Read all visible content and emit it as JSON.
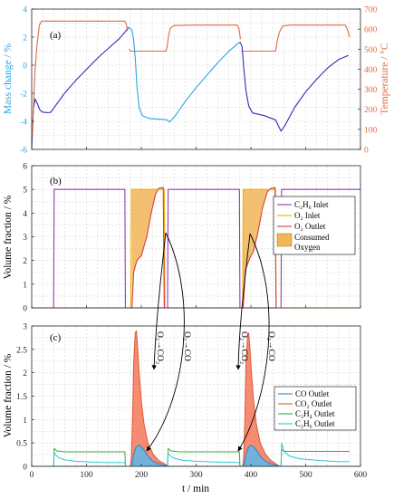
{
  "chart_data": [
    {
      "panel": "(a)",
      "type": "line",
      "xlim": [
        0,
        600
      ],
      "ylabel": "Mass change / %",
      "ylim": [
        -6,
        4
      ],
      "yticks": [
        -6,
        -4,
        -2,
        0,
        2,
        4
      ],
      "ylabel_right": "Temperature / °C",
      "ylim_right": [
        0,
        700
      ],
      "yticks_right": [
        0,
        100,
        200,
        300,
        400,
        500,
        600,
        700
      ],
      "grid": true,
      "series": [
        {
          "axis": "left",
          "color": "#2d2db8",
          "points": [
            [
              0,
              -5.9
            ],
            [
              3,
              -3.2
            ],
            [
              6,
              -2.4
            ],
            [
              10,
              -2.7
            ],
            [
              15,
              -3.2
            ],
            [
              20,
              -3.35
            ],
            [
              30,
              -3.38
            ],
            [
              35,
              -3.35
            ],
            [
              45,
              -2.8
            ],
            [
              60,
              -2.0
            ],
            [
              80,
              -1.1
            ],
            [
              100,
              -0.3
            ],
            [
              120,
              0.5
            ],
            [
              140,
              1.2
            ],
            [
              160,
              1.9
            ],
            [
              170,
              2.35
            ],
            [
              177,
              2.7
            ]
          ]
        },
        {
          "axis": "left",
          "color": "#2aa4e0",
          "points": [
            [
              177,
              2.7
            ],
            [
              180,
              2.6
            ],
            [
              183,
              2.5
            ],
            [
              186,
              1.8
            ],
            [
              189,
              0.5
            ],
            [
              192,
              -1.5
            ],
            [
              196,
              -3.0
            ],
            [
              202,
              -3.6
            ],
            [
              215,
              -3.8
            ],
            [
              235,
              -3.85
            ],
            [
              247,
              -3.9
            ],
            [
              252,
              -4.05
            ],
            [
              262,
              -3.6
            ],
            [
              280,
              -2.6
            ],
            [
              300,
              -1.6
            ],
            [
              320,
              -0.7
            ],
            [
              340,
              0.2
            ],
            [
              360,
              1.0
            ],
            [
              378,
              1.6
            ]
          ]
        },
        {
          "axis": "left",
          "color": "#2d2db8",
          "points": [
            [
              378,
              1.6
            ],
            [
              381,
              1.6
            ],
            [
              384,
              1.3
            ],
            [
              387,
              -0.2
            ],
            [
              391,
              -1.8
            ],
            [
              396,
              -2.9
            ],
            [
              403,
              -3.4
            ],
            [
              425,
              -3.6
            ],
            [
              445,
              -3.9
            ],
            [
              455,
              -4.7
            ],
            [
              462,
              -4.3
            ],
            [
              480,
              -3.0
            ],
            [
              500,
              -1.9
            ],
            [
              520,
              -1.0
            ],
            [
              540,
              -0.2
            ],
            [
              560,
              0.4
            ],
            [
              578,
              0.7
            ]
          ]
        },
        {
          "axis": "right",
          "color": "#e06a3e",
          "points": [
            [
              0,
              40
            ],
            [
              3,
              190
            ],
            [
              6,
              390
            ],
            [
              10,
              530
            ],
            [
              14,
              620
            ],
            [
              18,
              640
            ],
            [
              30,
              640
            ],
            [
              60,
              640
            ],
            [
              100,
              640
            ],
            [
              150,
              640
            ],
            [
              170,
              640
            ],
            [
              173,
              620
            ],
            [
              175,
              590
            ]
          ]
        },
        {
          "axis": "right",
          "color": "#e06a3e",
          "points": [
            [
              178,
              500
            ],
            [
              180,
              490
            ],
            [
              185,
              490
            ],
            [
              200,
              490
            ],
            [
              245,
              490
            ],
            [
              247,
              510
            ],
            [
              250,
              570
            ],
            [
              253,
              605
            ],
            [
              260,
              618
            ],
            [
              300,
              620
            ],
            [
              360,
              620
            ],
            [
              375,
              620
            ],
            [
              378,
              605
            ],
            [
              381,
              550
            ]
          ]
        },
        {
          "axis": "right",
          "color": "#e06a3e",
          "points": [
            [
              382,
              490
            ],
            [
              385,
              490
            ],
            [
              420,
              490
            ],
            [
              445,
              490
            ],
            [
              448,
              540
            ],
            [
              452,
              585
            ],
            [
              458,
              615
            ],
            [
              470,
              620
            ],
            [
              520,
              620
            ],
            [
              560,
              620
            ],
            [
              572,
              620
            ],
            [
              576,
              600
            ],
            [
              580,
              560
            ]
          ]
        }
      ]
    },
    {
      "panel": "(b)",
      "type": "line",
      "xlim": [
        0,
        600
      ],
      "ylabel": "Volume fraction / %",
      "ylim": [
        0,
        6
      ],
      "yticks": [
        0,
        1,
        2,
        3,
        4,
        5,
        6
      ],
      "grid": true,
      "legend_position": "right",
      "series": [
        {
          "name": "C₂H₆ Inlet",
          "color": "#8e3bbf",
          "points": [
            [
              0,
              0
            ],
            [
              40,
              0
            ],
            [
              41,
              5
            ],
            [
              170,
              5
            ],
            [
              171,
              0
            ],
            [
              248,
              0
            ],
            [
              249,
              5
            ],
            [
              379,
              5
            ],
            [
              380,
              0
            ],
            [
              455,
              0
            ],
            [
              456,
              5
            ],
            [
              600,
              5
            ]
          ]
        },
        {
          "name": "O₂ Inlet",
          "color": "#f0b000",
          "points": [
            [
              0,
              0
            ],
            [
              181,
              0
            ],
            [
              182,
              5
            ],
            [
              242,
              5
            ],
            [
              243,
              0
            ],
            [
              385,
              0
            ],
            [
              386,
              5
            ],
            [
              445,
              5
            ],
            [
              446,
              0
            ],
            [
              600,
              0
            ]
          ]
        },
        {
          "name": "O₂ Outlet",
          "color": "#d9403a",
          "points": [
            [
              0,
              0
            ],
            [
              183,
              0
            ],
            [
              186,
              1.5
            ],
            [
              192,
              2.0
            ],
            [
              200,
              2.2
            ],
            [
              210,
              3.0
            ],
            [
              218,
              4.0
            ],
            [
              226,
              4.8
            ],
            [
              232,
              5.05
            ],
            [
              240,
              5.08
            ],
            [
              242,
              0
            ],
            [
              386,
              0
            ],
            [
              390,
              1.6
            ],
            [
              398,
              2.1
            ],
            [
              405,
              2.4
            ],
            [
              413,
              3.2
            ],
            [
              421,
              4.2
            ],
            [
              430,
              4.9
            ],
            [
              437,
              5.05
            ],
            [
              444,
              5.08
            ],
            [
              446,
              0
            ]
          ]
        }
      ],
      "shaded": {
        "name": "Consumed Oxygen",
        "color": "#f0b557"
      },
      "annotations": [
        "O₂→CO₂",
        "O₂→CO"
      ]
    },
    {
      "panel": "(c)",
      "type": "area",
      "xlabel": "t / min",
      "xlim": [
        0,
        600
      ],
      "xticks": [
        0,
        100,
        200,
        300,
        400,
        500,
        600
      ],
      "ylabel": "Volume fraction / %",
      "ylim": [
        0,
        3
      ],
      "yticks": [
        0,
        0.5,
        1,
        1.5,
        2,
        2.5,
        3
      ],
      "grid": true,
      "legend_position": "right",
      "series": [
        {
          "name": "CO Outlet",
          "color": "#2f86c8",
          "fill": "#63b5e5",
          "points": [
            [
              0,
              0
            ],
            [
              180,
              0
            ],
            [
              183,
              0.05
            ],
            [
              186,
              0.25
            ],
            [
              190,
              0.4
            ],
            [
              195,
              0.45
            ],
            [
              200,
              0.42
            ],
            [
              206,
              0.33
            ],
            [
              212,
              0.22
            ],
            [
              220,
              0.12
            ],
            [
              230,
              0.06
            ],
            [
              243,
              0.02
            ],
            [
              250,
              0
            ],
            [
              385,
              0
            ],
            [
              388,
              0.05
            ],
            [
              391,
              0.25
            ],
            [
              395,
              0.4
            ],
            [
              400,
              0.45
            ],
            [
              405,
              0.42
            ],
            [
              411,
              0.33
            ],
            [
              417,
              0.22
            ],
            [
              425,
              0.12
            ],
            [
              435,
              0.06
            ],
            [
              446,
              0.02
            ],
            [
              453,
              0
            ],
            [
              600,
              0
            ]
          ]
        },
        {
          "name": "CO₂ Outlet",
          "color": "#e0573a",
          "fill": "#f47e62",
          "points": [
            [
              0,
              0
            ],
            [
              180,
              0
            ],
            [
              182,
              0.2
            ],
            [
              184,
              1.0
            ],
            [
              186,
              2.2
            ],
            [
              189,
              2.85
            ],
            [
              191,
              2.9
            ],
            [
              193,
              2.6
            ],
            [
              196,
              2.0
            ],
            [
              200,
              1.4
            ],
            [
              205,
              0.9
            ],
            [
              212,
              0.5
            ],
            [
              222,
              0.25
            ],
            [
              232,
              0.12
            ],
            [
              243,
              0.05
            ],
            [
              250,
              0
            ],
            [
              385,
              0
            ],
            [
              387,
              0.2
            ],
            [
              389,
              1.0
            ],
            [
              391,
              2.2
            ],
            [
              394,
              2.8
            ],
            [
              396,
              2.85
            ],
            [
              398,
              2.55
            ],
            [
              401,
              2.0
            ],
            [
              405,
              1.4
            ],
            [
              410,
              0.9
            ],
            [
              417,
              0.5
            ],
            [
              427,
              0.25
            ],
            [
              437,
              0.12
            ],
            [
              446,
              0.05
            ],
            [
              453,
              0
            ],
            [
              600,
              0
            ]
          ]
        },
        {
          "name": "C₂H₄ Outlet",
          "color": "#3aa53a",
          "points": [
            [
              0,
              0
            ],
            [
              40,
              0
            ],
            [
              41,
              0.38
            ],
            [
              46,
              0.33
            ],
            [
              60,
              0.31
            ],
            [
              100,
              0.31
            ],
            [
              140,
              0.31
            ],
            [
              170,
              0.31
            ],
            [
              171,
              0
            ],
            [
              248,
              0
            ],
            [
              249,
              0.38
            ],
            [
              254,
              0.33
            ],
            [
              270,
              0.31
            ],
            [
              320,
              0.31
            ],
            [
              379,
              0.31
            ],
            [
              380,
              0
            ],
            [
              455,
              0
            ],
            [
              456,
              0.36
            ],
            [
              462,
              0.32
            ],
            [
              500,
              0.32
            ],
            [
              560,
              0.32
            ],
            [
              580,
              0.32
            ]
          ]
        },
        {
          "name": "C₂H₆ Outlet",
          "color": "#2ec6d6",
          "points": [
            [
              0,
              0
            ],
            [
              40,
              0
            ],
            [
              41,
              0.3
            ],
            [
              44,
              0.24
            ],
            [
              50,
              0.18
            ],
            [
              60,
              0.14
            ],
            [
              80,
              0.11
            ],
            [
              110,
              0.09
            ],
            [
              140,
              0.08
            ],
            [
              170,
              0.08
            ],
            [
              171,
              0
            ],
            [
              248,
              0
            ],
            [
              249,
              0.28
            ],
            [
              253,
              0.22
            ],
            [
              260,
              0.17
            ],
            [
              275,
              0.13
            ],
            [
              300,
              0.11
            ],
            [
              340,
              0.09
            ],
            [
              379,
              0.08
            ],
            [
              380,
              0
            ],
            [
              455,
              0
            ],
            [
              456,
              0.5
            ],
            [
              460,
              0.32
            ],
            [
              470,
              0.22
            ],
            [
              490,
              0.16
            ],
            [
              520,
              0.13
            ],
            [
              560,
              0.1
            ],
            [
              580,
              0.1
            ]
          ]
        }
      ],
      "annotations": [
        "O₂→CO₂",
        "O₂→CO"
      ]
    }
  ]
}
